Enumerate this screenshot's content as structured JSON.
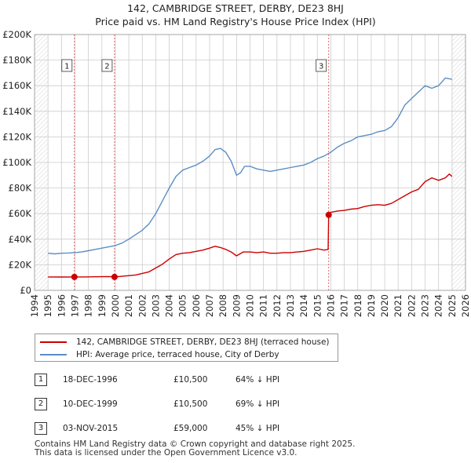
{
  "title_line1": "142, CAMBRIDGE STREET, DERBY, DE23 8HJ",
  "title_line2": "Price paid vs. HM Land Registry's House Price Index (HPI)",
  "legend": {
    "property_label": "142, CAMBRIDGE STREET, DERBY, DE23 8HJ (terraced house)",
    "hpi_label": "HPI: Average price, terraced house, City of Derby"
  },
  "transactions": [
    {
      "num": "1",
      "date": "18-DEC-1996",
      "price": "£10,500",
      "hpi": "64% ↓ HPI"
    },
    {
      "num": "2",
      "date": "10-DEC-1999",
      "price": "£10,500",
      "hpi": "69% ↓ HPI"
    },
    {
      "num": "3",
      "date": "03-NOV-2015",
      "price": "£59,000",
      "hpi": "45% ↓ HPI"
    }
  ],
  "footer": {
    "line1": "Contains HM Land Registry data © Crown copyright and database right 2025.",
    "line2": "This data is licensed under the Open Government Licence v3.0."
  },
  "colors": {
    "property": "#cc0000",
    "hpi": "#5b8ec4",
    "marker_line": "#e06666",
    "shade": "#dbe8f5",
    "grid": "#cccccc"
  },
  "chart_data": {
    "type": "line",
    "title": "142, CAMBRIDGE STREET, DERBY, DE23 8HJ — Price paid vs. HM Land Registry's House Price Index (HPI)",
    "xlim": [
      1994,
      2026
    ],
    "ylim": [
      0,
      200000
    ],
    "x_ticks": [
      "1994",
      "1995",
      "1996",
      "1997",
      "1998",
      "1999",
      "2000",
      "2001",
      "2002",
      "2003",
      "2004",
      "2005",
      "2006",
      "2007",
      "2008",
      "2009",
      "2010",
      "2011",
      "2012",
      "2013",
      "2014",
      "2015",
      "2016",
      "2017",
      "2018",
      "2019",
      "2020",
      "2021",
      "2022",
      "2023",
      "2024",
      "2025",
      "2026"
    ],
    "y_ticks": [
      "£0",
      "£20K",
      "£40K",
      "£60K",
      "£80K",
      "£100K",
      "£120K",
      "£140K",
      "£160K",
      "£180K",
      "£200K"
    ],
    "hatched_regions": [
      [
        1994,
        1995.0
      ],
      [
        2025.0,
        2026
      ]
    ],
    "series": [
      {
        "name": "142, CAMBRIDGE STREET, DERBY, DE23 8HJ (terraced house)",
        "x": [
          1995.0,
          1996.0,
          1996.96,
          1997.5,
          1998.5,
          1999.5,
          1999.94,
          2000.5,
          2001.5,
          2002.5,
          2003.0,
          2003.5,
          2004.0,
          2004.5,
          2005.0,
          2005.5,
          2006.0,
          2006.5,
          2007.0,
          2007.4,
          2007.8,
          2008.2,
          2008.6,
          2009.0,
          2009.5,
          2010.0,
          2010.5,
          2011.0,
          2011.5,
          2012.0,
          2012.5,
          2013.0,
          2013.5,
          2014.0,
          2014.5,
          2015.0,
          2015.5,
          2015.8,
          2015.84,
          2016.0,
          2016.5,
          2017.0,
          2017.5,
          2018.0,
          2018.5,
          2019.0,
          2019.5,
          2020.0,
          2020.5,
          2021.0,
          2021.5,
          2022.0,
          2022.5,
          2023.0,
          2023.5,
          2024.0,
          2024.5,
          2024.8,
          2025.0
        ],
        "values": [
          10500,
          10400,
          10500,
          10500,
          10600,
          10800,
          10500,
          11000,
          12000,
          14500,
          17500,
          20500,
          24500,
          28000,
          29000,
          29500,
          30500,
          31500,
          33000,
          34500,
          33500,
          32000,
          30000,
          27000,
          30000,
          30000,
          29500,
          30000,
          29000,
          29000,
          29500,
          29500,
          30000,
          30500,
          31500,
          32500,
          31500,
          32000,
          59000,
          61000,
          62000,
          62500,
          63500,
          64000,
          65500,
          66500,
          67000,
          66500,
          68000,
          71000,
          74000,
          77000,
          79000,
          85000,
          88000,
          86000,
          88000,
          91000,
          89000
        ]
      },
      {
        "name": "HPI: Average price, terraced house, City of Derby",
        "x": [
          1995.0,
          1995.5,
          1996.0,
          1996.5,
          1997.0,
          1997.5,
          1998.0,
          1998.5,
          1999.0,
          1999.5,
          2000.0,
          2000.5,
          2001.0,
          2001.5,
          2002.0,
          2002.5,
          2003.0,
          2003.5,
          2004.0,
          2004.5,
          2005.0,
          2005.5,
          2006.0,
          2006.5,
          2007.0,
          2007.4,
          2007.8,
          2008.2,
          2008.6,
          2009.0,
          2009.3,
          2009.6,
          2010.0,
          2010.5,
          2011.0,
          2011.5,
          2012.0,
          2012.5,
          2013.0,
          2013.5,
          2014.0,
          2014.5,
          2015.0,
          2015.5,
          2016.0,
          2016.5,
          2017.0,
          2017.5,
          2018.0,
          2018.5,
          2019.0,
          2019.5,
          2020.0,
          2020.5,
          2021.0,
          2021.5,
          2022.0,
          2022.5,
          2023.0,
          2023.5,
          2024.0,
          2024.5,
          2025.0
        ],
        "values": [
          29000,
          28500,
          29000,
          29200,
          29500,
          30000,
          31000,
          32000,
          33000,
          34000,
          35000,
          37000,
          40000,
          43500,
          47000,
          52000,
          60000,
          70000,
          80000,
          89000,
          94000,
          96000,
          98000,
          101000,
          105000,
          110000,
          111000,
          108000,
          101000,
          90000,
          92000,
          97000,
          97000,
          95000,
          94000,
          93000,
          94000,
          95000,
          96000,
          97000,
          98000,
          100000,
          103000,
          105000,
          108000,
          112000,
          115000,
          117000,
          120000,
          121000,
          122000,
          124000,
          125000,
          128000,
          135000,
          145000,
          150000,
          155000,
          160000,
          158000,
          160000,
          166000,
          165000
        ]
      }
    ],
    "annotations": [
      {
        "label": "1",
        "x": 1996.96,
        "y": 10500
      },
      {
        "label": "2",
        "x": 1999.94,
        "y": 10500
      },
      {
        "label": "3",
        "x": 2015.84,
        "y": 59000
      }
    ]
  }
}
